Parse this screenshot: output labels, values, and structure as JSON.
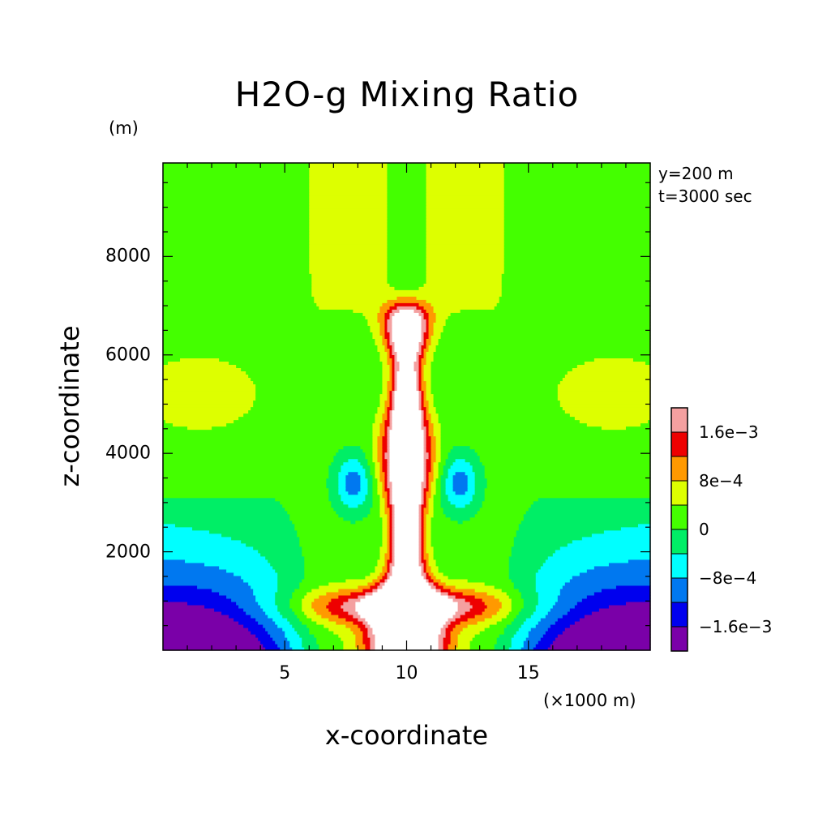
{
  "chart_data": {
    "type": "heatmap",
    "title": "H2O-g Mixing Ratio",
    "xlabel": "x-coordinate",
    "ylabel": "z-coordinate",
    "x_unit": "(×1000 m)",
    "y_unit": "(m)",
    "annotations": [
      "y=200 m",
      "t=3000 sec"
    ],
    "xlim": [
      0,
      20
    ],
    "ylim": [
      0,
      9900
    ],
    "x_ticks": [
      5,
      10,
      15
    ],
    "y_ticks": [
      2000,
      4000,
      6000,
      8000
    ],
    "grid": false,
    "colorbar": {
      "levels": [
        -0.002,
        -0.0016,
        -0.0012,
        -0.0008,
        -0.0004,
        0,
        0.0004,
        0.0008,
        0.0012,
        0.0016,
        0.002
      ],
      "colors": [
        "#7a00a8",
        "#0000ee",
        "#0078f0",
        "#00ffff",
        "#00ee66",
        "#44ff00",
        "#ddff00",
        "#ff9900",
        "#ee0000",
        "#f4a0a0"
      ],
      "over_color": "#ffffff",
      "labels": [
        {
          "value": -0.0016,
          "text": "−1.6e−3"
        },
        {
          "value": -0.0008,
          "text": "−8e−4"
        },
        {
          "value": 0,
          "text": "0"
        },
        {
          "value": 0.0008,
          "text": "8e−4"
        },
        {
          "value": 0.0016,
          "text": "1.6e−3"
        }
      ]
    },
    "field_features": {
      "background_value": 0.0002,
      "upper_anomaly": {
        "value": 0.0006,
        "x_range": [
          3.6,
          16.4
        ],
        "z_range": [
          7000,
          9900
        ]
      },
      "central_column": {
        "x_center": 10,
        "z_range": [
          0,
          9900
        ],
        "value": 0.0002
      },
      "plume": {
        "x_center": 10,
        "z_top": 6950,
        "core_value": 0.0025,
        "core_z_range": [
          2000,
          5300
        ]
      },
      "outflow_peak": {
        "x_center": 10,
        "z": 900,
        "half_width_km": 2.7,
        "value": 0.0018
      },
      "side_lobes": [
        {
          "x_center": 1.5,
          "z": 5200,
          "value": 0.0006
        },
        {
          "x_center": 18.5,
          "z": 5200,
          "value": 0.0006
        }
      ],
      "dry_spots": [
        {
          "x_center": 7.8,
          "z": 3400,
          "value": -0.0008
        },
        {
          "x_center": 12.2,
          "z": 3400,
          "value": -0.0008
        }
      ],
      "lower_boundary_minimum": {
        "value": -0.0024,
        "x_edges": [
          0,
          20
        ],
        "z": 100
      }
    }
  }
}
